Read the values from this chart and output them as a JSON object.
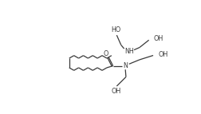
{
  "bg_color": "#ffffff",
  "line_color": "#3a3a3a",
  "lw": 0.9,
  "fs": 5.8,
  "figsize": [
    2.53,
    1.43
  ],
  "dpi": 100,
  "xlim": [
    0,
    253
  ],
  "ylim": [
    0,
    143
  ]
}
